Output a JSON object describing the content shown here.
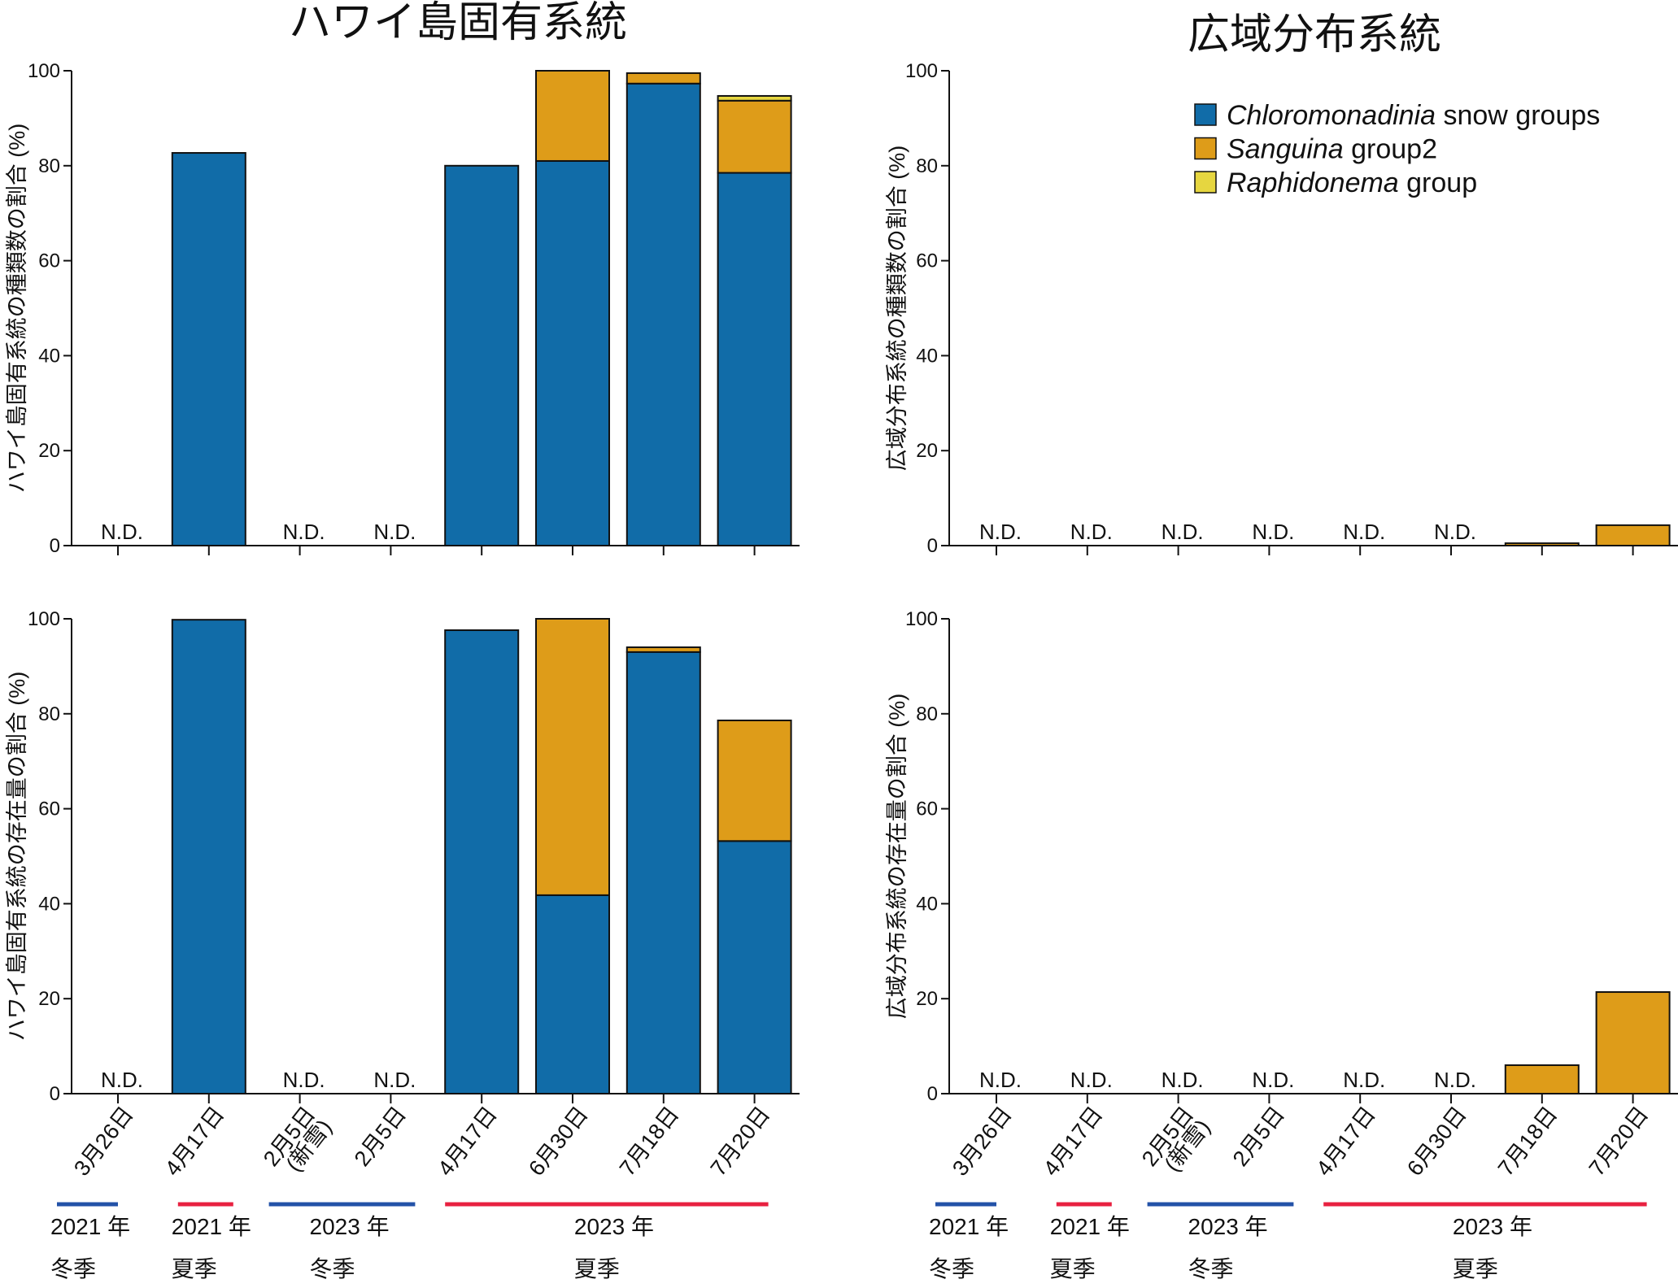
{
  "colors": {
    "Chloromonadinia snow groups": "#116ca8",
    "Sanguina group2": "#de9c19",
    "Raphidonema group": "#e6d640",
    "winter": "#2352a8",
    "summer": "#e82140"
  },
  "legend": [
    {
      "italic": "Chloromonadinia",
      "rest": " snow groups",
      "key": "Chloromonadinia snow groups"
    },
    {
      "italic": "Sanguina",
      "rest": " group2",
      "key": "Sanguina group2"
    },
    {
      "italic": "Raphidonema",
      "rest": " group",
      "key": "Raphidonema group"
    }
  ],
  "nd_label": "N.D.",
  "date_labels": [
    "3月26日",
    "4月17日",
    "2月5日\n(新雪)",
    "2月5日",
    "4月17日",
    "6月30日",
    "7月18日",
    "7月20日"
  ],
  "season_groups": [
    {
      "year": "2021 年",
      "season": "冬季",
      "type": "winter",
      "from": 0,
      "to": 0
    },
    {
      "year": "2021 年",
      "season": "夏季",
      "type": "summer",
      "from": 1,
      "to": 1
    },
    {
      "year": "2023 年",
      "season": "冬季",
      "type": "winter",
      "from": 2,
      "to": 3
    },
    {
      "year": "2023 年",
      "season": "夏季",
      "type": "summer",
      "from": 4,
      "to": 7
    }
  ],
  "chart_data": [
    {
      "type": "bar",
      "stacked": true,
      "title": "ハワイ島固有系統",
      "ylabel": "ハワイ島固有系統の種類数の割合 (%)",
      "ylim": [
        0,
        100
      ],
      "yticks": [
        0,
        20,
        40,
        60,
        80,
        100
      ],
      "categories": [
        "3月26日",
        "4月17日",
        "2月5日(新雪)",
        "2月5日",
        "4月17日",
        "6月30日",
        "7月18日",
        "7月20日"
      ],
      "nd": [
        true,
        false,
        true,
        true,
        false,
        false,
        false,
        false
      ],
      "series": [
        {
          "name": "Chloromonadinia snow groups",
          "values": [
            0,
            82.7,
            0,
            0,
            80,
            81,
            97.3,
            78.5
          ]
        },
        {
          "name": "Sanguina group2",
          "values": [
            0,
            0,
            0,
            0,
            0,
            19,
            2.2,
            15.2
          ]
        },
        {
          "name": "Raphidonema group",
          "values": [
            0,
            0,
            0,
            0,
            0,
            0,
            0,
            1.0
          ]
        }
      ]
    },
    {
      "type": "bar",
      "stacked": true,
      "title": "広域分布系統",
      "ylabel": "広域分布系統の種類数の割合 (%)",
      "ylim": [
        0,
        100
      ],
      "yticks": [
        0,
        20,
        40,
        60,
        80,
        100
      ],
      "categories": [
        "3月26日",
        "4月17日",
        "2月5日(新雪)",
        "2月5日",
        "4月17日",
        "6月30日",
        "7月18日",
        "7月20日"
      ],
      "nd": [
        true,
        true,
        true,
        true,
        true,
        true,
        false,
        false
      ],
      "series": [
        {
          "name": "Chloromonadinia snow groups",
          "values": [
            0,
            0,
            0,
            0,
            0,
            0,
            0,
            0
          ]
        },
        {
          "name": "Sanguina group2",
          "values": [
            0,
            0,
            0,
            0,
            0,
            0,
            0.5,
            4.3
          ]
        },
        {
          "name": "Raphidonema group",
          "values": [
            0,
            0,
            0,
            0,
            0,
            0,
            0,
            0
          ]
        }
      ]
    },
    {
      "type": "bar",
      "stacked": true,
      "title": "",
      "ylabel": "ハワイ島固有系統の存在量の割合 (%)",
      "ylim": [
        0,
        100
      ],
      "yticks": [
        0,
        20,
        40,
        60,
        80,
        100
      ],
      "categories": [
        "3月26日",
        "4月17日",
        "2月5日(新雪)",
        "2月5日",
        "4月17日",
        "6月30日",
        "7月18日",
        "7月20日"
      ],
      "nd": [
        true,
        false,
        true,
        true,
        false,
        false,
        false,
        false
      ],
      "series": [
        {
          "name": "Chloromonadinia snow groups",
          "values": [
            0,
            99.8,
            0,
            0,
            97.6,
            41.8,
            93,
            53.2
          ]
        },
        {
          "name": "Sanguina group2",
          "values": [
            0,
            0,
            0,
            0,
            0,
            58.2,
            1.0,
            25.4
          ]
        },
        {
          "name": "Raphidonema group",
          "values": [
            0,
            0,
            0,
            0,
            0,
            0,
            0,
            0
          ]
        }
      ]
    },
    {
      "type": "bar",
      "stacked": true,
      "title": "",
      "ylabel": "広域分布系統の存在量の割合 (%)",
      "ylim": [
        0,
        100
      ],
      "yticks": [
        0,
        20,
        40,
        60,
        80,
        100
      ],
      "categories": [
        "3月26日",
        "4月17日",
        "2月5日(新雪)",
        "2月5日",
        "4月17日",
        "6月30日",
        "7月18日",
        "7月20日"
      ],
      "nd": [
        true,
        true,
        true,
        true,
        true,
        true,
        false,
        false
      ],
      "series": [
        {
          "name": "Chloromonadinia snow groups",
          "values": [
            0,
            0,
            0,
            0,
            0,
            0,
            0,
            0
          ]
        },
        {
          "name": "Sanguina group2",
          "values": [
            0,
            0,
            0,
            0,
            0,
            0,
            6,
            21.4
          ]
        },
        {
          "name": "Raphidonema group",
          "values": [
            0,
            0,
            0,
            0,
            0,
            0,
            0,
            0
          ]
        }
      ]
    }
  ]
}
